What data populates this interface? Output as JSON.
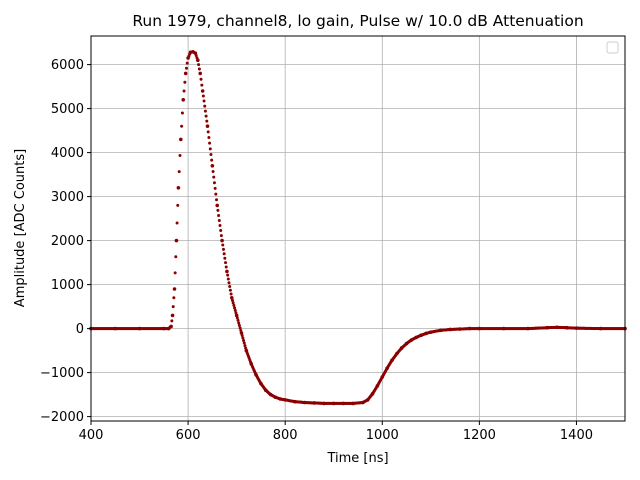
{
  "chart_data": {
    "type": "scatter",
    "title": "Run 1979, channel8, lo gain, Pulse w/ 10.0 dB Attenuation",
    "xlabel": "Time [ns]",
    "ylabel": "Amplitude [ADC Counts]",
    "xlim": [
      400,
      1500
    ],
    "ylim": [
      -2100,
      6650
    ],
    "xticks": [
      400,
      600,
      800,
      1000,
      1200,
      1400
    ],
    "yticks": [
      -2000,
      -1000,
      0,
      1000,
      2000,
      3000,
      4000,
      5000,
      6000
    ],
    "grid": true,
    "legend": "top-right",
    "marker_color": "#8b0000",
    "series": [
      {
        "x": [
          400,
          450,
          500,
          550,
          560,
          565,
          568,
          572,
          576,
          580,
          585,
          590,
          595,
          600,
          605,
          610,
          615,
          620,
          625,
          630,
          640,
          650,
          660,
          670,
          680,
          690,
          700,
          710,
          720,
          730,
          740,
          750,
          760,
          770,
          780,
          790,
          800,
          820,
          840,
          860,
          880,
          900,
          920,
          940,
          960,
          970,
          980,
          990,
          1000,
          1010,
          1020,
          1030,
          1040,
          1050,
          1060,
          1070,
          1080,
          1090,
          1100,
          1120,
          1140,
          1160,
          1180,
          1200,
          1250,
          1300,
          1340,
          1360,
          1380,
          1400,
          1450,
          1500
        ],
        "y": [
          0,
          0,
          0,
          0,
          0,
          50,
          300,
          900,
          2000,
          3200,
          4300,
          5200,
          5800,
          6150,
          6280,
          6290,
          6260,
          6100,
          5800,
          5400,
          4600,
          3700,
          2800,
          2000,
          1300,
          700,
          300,
          -100,
          -500,
          -800,
          -1050,
          -1250,
          -1400,
          -1500,
          -1560,
          -1600,
          -1620,
          -1660,
          -1680,
          -1690,
          -1700,
          -1700,
          -1700,
          -1700,
          -1680,
          -1620,
          -1480,
          -1300,
          -1100,
          -900,
          -720,
          -570,
          -440,
          -340,
          -260,
          -200,
          -150,
          -110,
          -80,
          -40,
          -20,
          -10,
          0,
          0,
          0,
          0,
          20,
          30,
          20,
          10,
          0,
          0
        ]
      }
    ]
  }
}
